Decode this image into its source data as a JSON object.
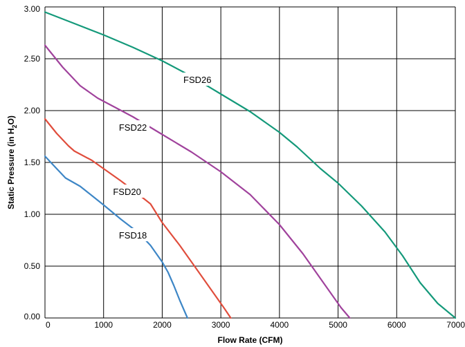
{
  "chart_data": {
    "type": "line",
    "xlabel": "Flow Rate (CFM)",
    "ylabel": "Static Pressure (in H2O)",
    "xlim": [
      0,
      7000
    ],
    "ylim": [
      0,
      3
    ],
    "xticks": [
      "0",
      "1000",
      "2000",
      "3000",
      "4000",
      "5000",
      "6000",
      "7000"
    ],
    "yticks": [
      "0.00",
      "0.50",
      "1.00",
      "1.50",
      "2.00",
      "2.50",
      "3.00"
    ],
    "grid": true,
    "series": [
      {
        "name": "FSD18",
        "color": "#3d86c6",
        "points": [
          [
            0,
            1.56
          ],
          [
            200,
            1.44
          ],
          [
            350,
            1.35
          ],
          [
            600,
            1.27
          ],
          [
            800,
            1.18
          ],
          [
            1000,
            1.09
          ],
          [
            1300,
            0.95
          ],
          [
            1600,
            0.82
          ],
          [
            1800,
            0.7
          ],
          [
            2000,
            0.54
          ],
          [
            2100,
            0.44
          ],
          [
            2200,
            0.31
          ],
          [
            2300,
            0.17
          ],
          [
            2430,
            0.0
          ]
        ]
      },
      {
        "name": "FSD20",
        "color": "#e04d3c",
        "points": [
          [
            0,
            1.92
          ],
          [
            200,
            1.78
          ],
          [
            400,
            1.66
          ],
          [
            500,
            1.61
          ],
          [
            800,
            1.52
          ],
          [
            1000,
            1.44
          ],
          [
            1300,
            1.32
          ],
          [
            1600,
            1.19
          ],
          [
            1800,
            1.1
          ],
          [
            2000,
            0.92
          ],
          [
            2300,
            0.7
          ],
          [
            2600,
            0.46
          ],
          [
            2900,
            0.22
          ],
          [
            3050,
            0.1
          ],
          [
            3170,
            0.0
          ]
        ]
      },
      {
        "name": "FSD22",
        "color": "#a0429c",
        "points": [
          [
            0,
            2.63
          ],
          [
            300,
            2.42
          ],
          [
            600,
            2.24
          ],
          [
            900,
            2.12
          ],
          [
            1200,
            2.03
          ],
          [
            1500,
            1.94
          ],
          [
            2000,
            1.77
          ],
          [
            2500,
            1.6
          ],
          [
            3000,
            1.41
          ],
          [
            3500,
            1.19
          ],
          [
            4000,
            0.9
          ],
          [
            4400,
            0.62
          ],
          [
            4800,
            0.3
          ],
          [
            5050,
            0.1
          ],
          [
            5200,
            0.0
          ]
        ]
      },
      {
        "name": "FSD26",
        "color": "#14997a",
        "points": [
          [
            0,
            2.95
          ],
          [
            500,
            2.84
          ],
          [
            1000,
            2.73
          ],
          [
            1500,
            2.61
          ],
          [
            2000,
            2.48
          ],
          [
            2500,
            2.33
          ],
          [
            3000,
            2.16
          ],
          [
            3500,
            1.99
          ],
          [
            4000,
            1.79
          ],
          [
            4300,
            1.65
          ],
          [
            4700,
            1.44
          ],
          [
            5000,
            1.3
          ],
          [
            5400,
            1.08
          ],
          [
            5800,
            0.83
          ],
          [
            6100,
            0.6
          ],
          [
            6400,
            0.34
          ],
          [
            6700,
            0.14
          ],
          [
            7000,
            0.0
          ]
        ]
      }
    ],
    "annotations": [
      {
        "text": "FSD26",
        "x": 2600,
        "y": 2.3
      },
      {
        "text": "FSD22",
        "x": 1500,
        "y": 1.84
      },
      {
        "text": "FSD20",
        "x": 1400,
        "y": 1.22
      },
      {
        "text": "FSD18",
        "x": 1500,
        "y": 0.8
      }
    ]
  }
}
